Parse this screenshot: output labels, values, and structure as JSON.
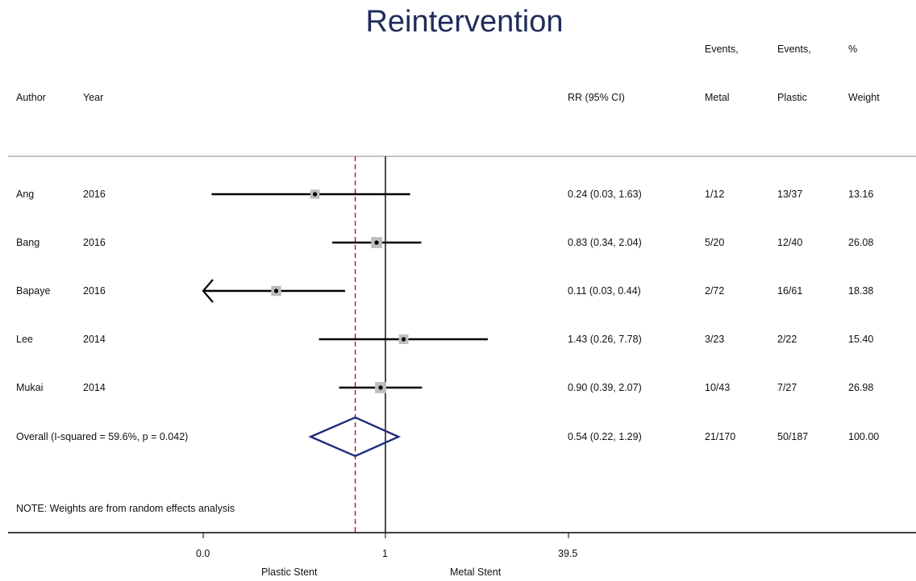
{
  "header": {
    "title": "Reintervention",
    "col_author": "Author",
    "col_year": "Year",
    "col_rr": "RR (95% CI)",
    "col_events_metal_1": "Events,",
    "col_events_metal_2": "Metal",
    "col_events_plastic_1": "Events,",
    "col_events_plastic_2": "Plastic",
    "col_weight_1": "%",
    "col_weight_2": "Weight"
  },
  "rows": [
    {
      "author": "Ang",
      "year": "2016",
      "rr_ci": "0.24 (0.03, 1.63)",
      "events_metal": "1/12",
      "events_plastic": "13/37",
      "weight": "13.16"
    },
    {
      "author": "Bang",
      "year": "2016",
      "rr_ci": "0.83 (0.34, 2.04)",
      "events_metal": "5/20",
      "events_plastic": "12/40",
      "weight": "26.08"
    },
    {
      "author": "Bapaye",
      "year": "2016",
      "rr_ci": "0.11 (0.03, 0.44)",
      "events_metal": "2/72",
      "events_plastic": "16/61",
      "weight": "18.38"
    },
    {
      "author": "Lee",
      "year": "2014",
      "rr_ci": "1.43 (0.26, 7.78)",
      "events_metal": "3/23",
      "events_plastic": "2/22",
      "weight": "15.40"
    },
    {
      "author": "Mukai",
      "year": "2014",
      "rr_ci": "0.90 (0.39, 2.07)",
      "events_metal": "10/43",
      "events_plastic": "7/27",
      "weight": "26.98"
    }
  ],
  "overall": {
    "label": "Overall  (I-squared = 59.6%, p = 0.042)",
    "rr_ci": "0.54 (0.22, 1.29)",
    "events_metal": "21/170",
    "events_plastic": "50/187",
    "weight": "100.00"
  },
  "note": "NOTE: Weights are from random effects analysis",
  "axis": {
    "tick_labels": [
      "0.0",
      "1",
      "39.5"
    ],
    "left_label": "Plastic Stent",
    "right_label": "Metal Stent"
  },
  "colors": {
    "title": "#1f2d5a",
    "diamond": "#1f2d7a",
    "reference_dashed": "#a01c1c",
    "weight_box": "#bdbdbd"
  },
  "chart_data": {
    "type": "forest",
    "title": "Reintervention",
    "scale": "log",
    "xlim": [
      0.0253,
      39.5
    ],
    "x_ticks": [
      {
        "label": "0.0",
        "value": 0.0253
      },
      {
        "label": "1",
        "value": 1
      },
      {
        "label": "39.5",
        "value": 39.5
      }
    ],
    "null_line": 1,
    "pooled_estimate_line": 0.54,
    "studies": [
      {
        "name": "Ang",
        "rr": 0.24,
        "lower": 0.03,
        "upper": 1.63,
        "weight": 13.16
      },
      {
        "name": "Bang",
        "rr": 0.83,
        "lower": 0.34,
        "upper": 2.04,
        "weight": 26.08
      },
      {
        "name": "Bapaye",
        "rr": 0.11,
        "lower": 0.03,
        "upper": 0.44,
        "weight": 18.38,
        "lower_truncated": true
      },
      {
        "name": "Lee",
        "rr": 1.43,
        "lower": 0.26,
        "upper": 7.78,
        "weight": 15.4
      },
      {
        "name": "Mukai",
        "rr": 0.9,
        "lower": 0.39,
        "upper": 2.07,
        "weight": 26.98
      }
    ],
    "overall": {
      "rr": 0.54,
      "lower": 0.22,
      "upper": 1.29,
      "weight": 100.0
    }
  }
}
